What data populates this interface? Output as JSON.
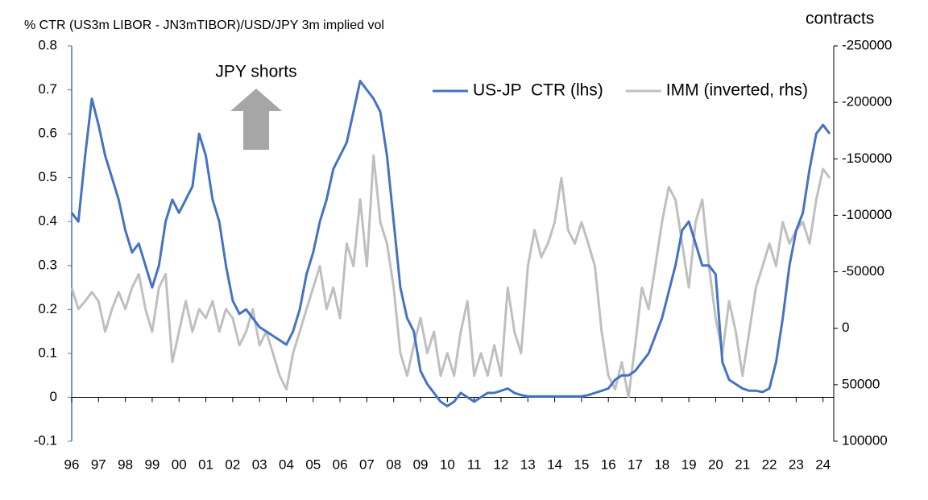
{
  "chart_data": {
    "type": "line",
    "title": "% CTR (US3m LIBOR - JN3mTIBOR)/USD/JPY 3m implied vol",
    "y2_label": "contracts",
    "annotation": "JPY shorts",
    "legend": "upper right",
    "xlim": [
      1996,
      2024.4
    ],
    "xticks": [
      {
        "value": 1996,
        "label": "96"
      },
      {
        "value": 1997,
        "label": "97"
      },
      {
        "value": 1998,
        "label": "98"
      },
      {
        "value": 1999,
        "label": "99"
      },
      {
        "value": 2000,
        "label": "00"
      },
      {
        "value": 2001,
        "label": "01"
      },
      {
        "value": 2002,
        "label": "02"
      },
      {
        "value": 2003,
        "label": "03"
      },
      {
        "value": 2004,
        "label": "04"
      },
      {
        "value": 2005,
        "label": "05"
      },
      {
        "value": 2006,
        "label": "06"
      },
      {
        "value": 2007,
        "label": "07"
      },
      {
        "value": 2008,
        "label": "08"
      },
      {
        "value": 2009,
        "label": "09"
      },
      {
        "value": 2010,
        "label": "10"
      },
      {
        "value": 2011,
        "label": "11"
      },
      {
        "value": 2012,
        "label": "12"
      },
      {
        "value": 2013,
        "label": "13"
      },
      {
        "value": 2014,
        "label": "14"
      },
      {
        "value": 2015,
        "label": "15"
      },
      {
        "value": 2016,
        "label": "16"
      },
      {
        "value": 2017,
        "label": "17"
      },
      {
        "value": 2018,
        "label": "18"
      },
      {
        "value": 2019,
        "label": "19"
      },
      {
        "value": 2020,
        "label": "20"
      },
      {
        "value": 2021,
        "label": "21"
      },
      {
        "value": 2022,
        "label": "22"
      },
      {
        "value": 2023,
        "label": "23"
      },
      {
        "value": 2024,
        "label": "24"
      }
    ],
    "ylim": [
      -0.1,
      0.8
    ],
    "yticks": [
      -0.1,
      0,
      0.1,
      0.2,
      0.3,
      0.4,
      0.5,
      0.6,
      0.7,
      0.8
    ],
    "y2lim": [
      100000,
      -250000
    ],
    "y2ticks": [
      100000,
      50000,
      0,
      -50000,
      -100000,
      -150000,
      -200000,
      -250000
    ],
    "x": [
      1996,
      1996.25,
      1996.5,
      1996.75,
      1997,
      1997.25,
      1997.5,
      1997.75,
      1998,
      1998.25,
      1998.5,
      1998.75,
      1999,
      1999.25,
      1999.5,
      1999.75,
      2000,
      2000.25,
      2000.5,
      2000.75,
      2001,
      2001.25,
      2001.5,
      2001.75,
      2002,
      2002.25,
      2002.5,
      2002.75,
      2003,
      2003.25,
      2003.5,
      2003.75,
      2004,
      2004.25,
      2004.5,
      2004.75,
      2005,
      2005.25,
      2005.5,
      2005.75,
      2006,
      2006.25,
      2006.5,
      2006.75,
      2007,
      2007.25,
      2007.5,
      2007.75,
      2008,
      2008.25,
      2008.5,
      2008.75,
      2009,
      2009.25,
      2009.5,
      2009.75,
      2010,
      2010.25,
      2010.5,
      2010.75,
      2011,
      2011.25,
      2011.5,
      2011.75,
      2012,
      2012.25,
      2012.5,
      2012.75,
      2013,
      2013.25,
      2013.5,
      2013.75,
      2014,
      2014.25,
      2014.5,
      2014.75,
      2015,
      2015.25,
      2015.5,
      2015.75,
      2016,
      2016.25,
      2016.5,
      2016.75,
      2017,
      2017.25,
      2017.5,
      2017.75,
      2018,
      2018.25,
      2018.5,
      2018.75,
      2019,
      2019.25,
      2019.5,
      2019.75,
      2020,
      2020.25,
      2020.5,
      2020.75,
      2021,
      2021.25,
      2021.5,
      2021.75,
      2022,
      2022.25,
      2022.5,
      2022.75,
      2023,
      2023.25,
      2023.5,
      2023.75,
      2024,
      2024.25
    ],
    "series": [
      {
        "name": "IMM (inverted, rhs)",
        "color": "#bfbfbf",
        "axis": "y2",
        "values": [
          -36000,
          -17000,
          -24000,
          -32000,
          -24000,
          3000,
          -17000,
          -32000,
          -17000,
          -36000,
          -48000,
          -17000,
          3000,
          -36000,
          -48000,
          30000,
          3000,
          -24000,
          3000,
          -17000,
          -9000,
          -24000,
          3000,
          -17000,
          -9000,
          15000,
          3000,
          -17000,
          15000,
          3000,
          22000,
          42000,
          54000,
          22000,
          3000,
          -17000,
          -36000,
          -55000,
          -17000,
          -36000,
          -9000,
          -75000,
          -55000,
          -114000,
          -55000,
          -153000,
          -94000,
          -75000,
          -36000,
          22000,
          42000,
          15000,
          -9000,
          22000,
          3000,
          42000,
          22000,
          42000,
          3000,
          -24000,
          42000,
          22000,
          42000,
          15000,
          42000,
          -36000,
          3000,
          22000,
          -55000,
          -87000,
          -63000,
          -75000,
          -94000,
          -133000,
          -87000,
          -75000,
          -94000,
          -75000,
          -55000,
          3000,
          42000,
          54000,
          30000,
          61000,
          15000,
          -36000,
          -17000,
          -55000,
          -94000,
          -125000,
          -114000,
          -75000,
          -36000,
          -94000,
          -114000,
          -55000,
          -9000,
          22000,
          -24000,
          3000,
          42000,
          3000,
          -36000,
          -55000,
          -75000,
          -55000,
          -94000,
          -75000,
          -87000,
          -94000,
          -75000,
          -114000,
          -141000,
          -133000
        ]
      },
      {
        "name": "US-JP  CTR (lhs)",
        "color": "#4472c4",
        "values": [
          0.42,
          0.4,
          0.55,
          0.68,
          0.62,
          0.55,
          0.5,
          0.45,
          0.38,
          0.33,
          0.35,
          0.3,
          0.25,
          0.3,
          0.4,
          0.45,
          0.42,
          0.45,
          0.48,
          0.6,
          0.55,
          0.45,
          0.4,
          0.3,
          0.22,
          0.19,
          0.2,
          0.18,
          0.16,
          0.15,
          0.14,
          0.13,
          0.12,
          0.15,
          0.2,
          0.28,
          0.33,
          0.4,
          0.45,
          0.52,
          0.55,
          0.58,
          0.65,
          0.72,
          0.7,
          0.68,
          0.65,
          0.55,
          0.4,
          0.25,
          0.18,
          0.15,
          0.06,
          0.03,
          0.01,
          -0.01,
          -0.02,
          -0.01,
          0.01,
          0,
          -0.01,
          0,
          0.01,
          0.01,
          0.015,
          0.02,
          0.01,
          0.005,
          0.002,
          0.002,
          0.002,
          0.002,
          0.002,
          0.002,
          0.002,
          0.002,
          0.002,
          0.005,
          0.01,
          0.015,
          0.02,
          0.04,
          0.05,
          0.05,
          0.06,
          0.08,
          0.1,
          0.14,
          0.18,
          0.24,
          0.3,
          0.38,
          0.4,
          0.35,
          0.3,
          0.3,
          0.28,
          0.08,
          0.04,
          0.03,
          0.02,
          0.015,
          0.015,
          0.012,
          0.02,
          0.08,
          0.18,
          0.3,
          0.38,
          0.42,
          0.52,
          0.6,
          0.62,
          0.6
        ]
      }
    ]
  }
}
